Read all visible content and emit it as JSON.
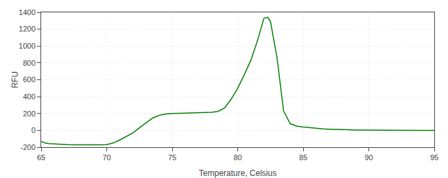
{
  "chart_data": {
    "type": "line",
    "xlabel": "Temperature, Celsius",
    "ylabel": "RFU",
    "x": [
      65.0,
      65.3,
      65.6,
      66.0,
      66.5,
      67.0,
      67.5,
      68.0,
      68.5,
      69.0,
      69.5,
      70.0,
      70.5,
      71.0,
      71.5,
      72.0,
      72.5,
      73.0,
      73.5,
      74.0,
      74.5,
      75.0,
      75.5,
      76.0,
      76.5,
      77.0,
      77.5,
      78.0,
      78.5,
      79.0,
      79.5,
      80.0,
      80.5,
      81.0,
      81.5,
      82.0,
      82.3,
      82.5,
      83.0,
      83.5,
      84.0,
      84.5,
      85.0,
      85.5,
      86.0,
      86.5,
      87.0,
      87.5,
      88.0,
      88.5,
      89.0,
      89.5,
      90.0,
      91.0,
      92.0,
      93.0,
      94.0,
      95.0
    ],
    "values": [
      -130,
      -150,
      -158,
      -163,
      -168,
      -170,
      -172,
      -173,
      -173,
      -172,
      -172,
      -170,
      -150,
      -115,
      -75,
      -30,
      30,
      90,
      145,
      178,
      193,
      200,
      202,
      205,
      206,
      207,
      210,
      215,
      225,
      265,
      370,
      500,
      660,
      830,
      1060,
      1330,
      1340,
      1290,
      860,
      230,
      80,
      50,
      40,
      32,
      25,
      18,
      14,
      10,
      8,
      6,
      4,
      3,
      2,
      1,
      1,
      0,
      0,
      0
    ],
    "color": "#008000",
    "xlim": [
      65,
      95
    ],
    "ylim": [
      -200,
      1400
    ],
    "xticks": [
      65,
      70,
      75,
      80,
      85,
      90,
      95
    ],
    "yticks": [
      -200,
      0,
      200,
      400,
      600,
      800,
      1000,
      1200,
      1400
    ],
    "grid": true
  }
}
